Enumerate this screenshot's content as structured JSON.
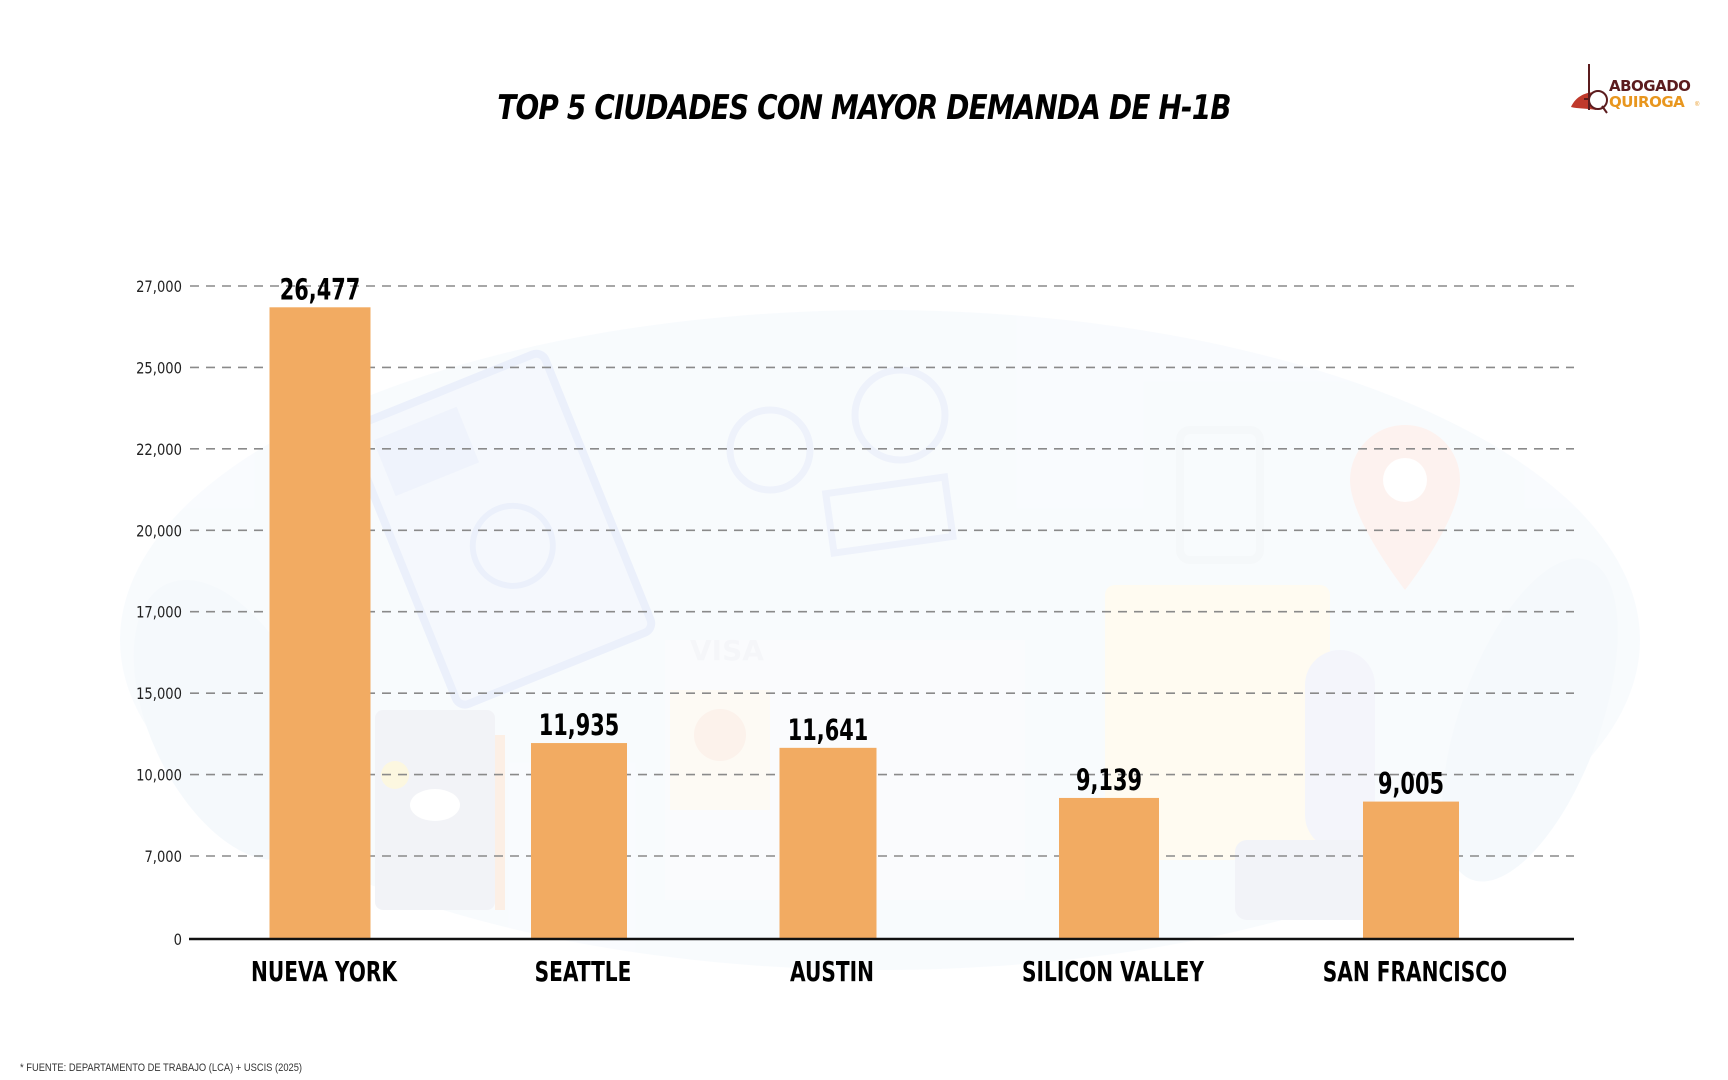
{
  "title": "TOP 5 CIUDADES CON MAYOR DEMANDA DE H-1B",
  "logo": {
    "line1": "ABOGADO",
    "line2": "QUIROGA",
    "reg": "®"
  },
  "footer": "* FUENTE: DEPARTAMENTO DE TRABAJO (LCA) + USCIS (2025)",
  "background_illustration": {
    "lettering": "VISA"
  },
  "colors": {
    "bar": "#F2AB62",
    "grid": "#8a8a8a",
    "axis": "#111111",
    "text": "#000000"
  },
  "chart_data": {
    "type": "bar",
    "title": "TOP 5 CIUDADES CON MAYOR DEMANDA DE H-1B",
    "xlabel": "",
    "ylabel": "",
    "categories": [
      "NUEVA YORK",
      "SEATTLE",
      "AUSTIN",
      "SILICON VALLEY",
      "SAN FRANCISCO"
    ],
    "values": [
      26477,
      11935,
      11641,
      9139,
      9005
    ],
    "value_labels": [
      "26,477",
      "11,935",
      "11,641",
      "9,139",
      "9,005"
    ],
    "yticks": [
      0,
      7000,
      10000,
      15000,
      17000,
      20000,
      22000,
      25000,
      27000
    ],
    "ytick_labels": [
      "0",
      "7,000",
      "10,000",
      "15,000",
      "17,000",
      "20,000",
      "22,000",
      "25,000",
      "27,000"
    ],
    "ylim": [
      0,
      27000
    ],
    "grid": true,
    "legend": "none"
  }
}
